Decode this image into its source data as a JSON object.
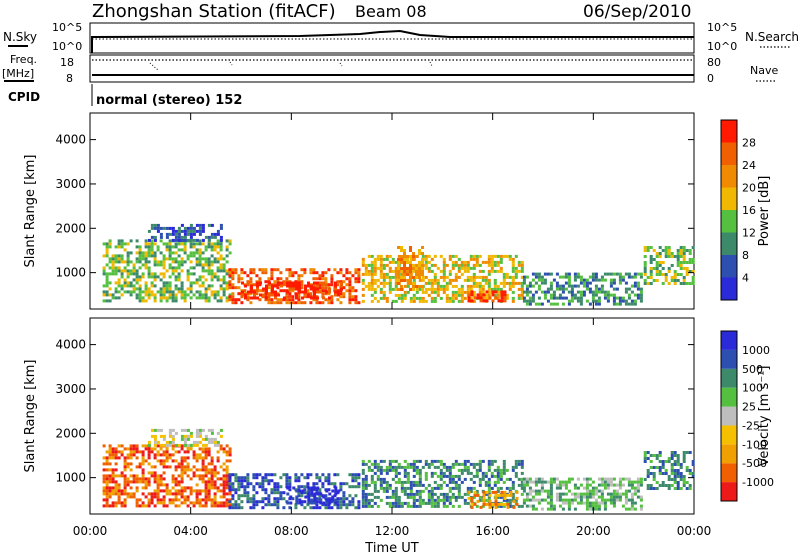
{
  "header": {
    "title": "Zhongshan Station (fitACF)",
    "beam": "Beam 08",
    "date": "06/Sep/2010"
  },
  "info_panels": {
    "nsky_label": "N.Sky",
    "nsky_ticks": [
      "10^5",
      "10^0"
    ],
    "nsearch_label": "N.Search",
    "freq_label": "Freq.",
    "freq_unit": "[MHz]",
    "freq_ticks": [
      "18",
      "8"
    ],
    "nave_label": "Nave",
    "nave_ticks": [
      "80",
      "0"
    ],
    "cpid_label": "CPID",
    "cpid_text": "normal (stereo) 152"
  },
  "colors": {
    "power": [
      "#2a2ad8",
      "#2c4fb0",
      "#3c8a6a",
      "#55c040",
      "#f0b800",
      "#f08a00",
      "#f06000",
      "#ff1a00"
    ],
    "velocity": [
      "#ee1a1a",
      "#f06000",
      "#f0a000",
      "#f5c000",
      "#bebebe",
      "#55c040",
      "#3c8a6a",
      "#2c4fb0",
      "#2a2ad8"
    ]
  },
  "chart_data": [
    {
      "type": "heatmap",
      "ylabel": "Slant Range [km]",
      "xlabel": "",
      "x_ticks": [
        "00:00",
        "04:00",
        "08:00",
        "12:00",
        "16:00",
        "20:00",
        "00:00"
      ],
      "xlim_hours": [
        0,
        24
      ],
      "ylim_km": [
        180,
        4600
      ],
      "y_ticks": [
        1000,
        2000,
        3000,
        4000
      ],
      "colorbar": {
        "label": "Power [dB]",
        "ticks": [
          "4",
          "8",
          "12",
          "16",
          "20",
          "24",
          "28"
        ]
      },
      "regions": [
        {
          "t0": 0.5,
          "t1": 5.6,
          "r0": 300,
          "r1": 1750,
          "level": 3
        },
        {
          "t0": 2.3,
          "t1": 5.3,
          "r0": 1700,
          "r1": 2100,
          "level": 1
        },
        {
          "t0": 5.5,
          "t1": 10.8,
          "r0": 300,
          "r1": 1100,
          "level": 6
        },
        {
          "t0": 6.0,
          "t1": 10.0,
          "r0": 400,
          "r1": 800,
          "level": 7
        },
        {
          "t0": 10.8,
          "t1": 17.2,
          "r0": 300,
          "r1": 1400,
          "level": 4
        },
        {
          "t0": 12.2,
          "t1": 13.3,
          "r0": 600,
          "r1": 1600,
          "level": 5
        },
        {
          "t0": 15.0,
          "t1": 16.6,
          "r0": 300,
          "r1": 600,
          "level": 7
        },
        {
          "t0": 17.2,
          "t1": 22.0,
          "r0": 250,
          "r1": 1000,
          "level": 2
        },
        {
          "t0": 22.0,
          "t1": 24.0,
          "r0": 700,
          "r1": 1600,
          "level": 3
        }
      ]
    },
    {
      "type": "heatmap",
      "ylabel": "Slant Range [km]",
      "xlabel": "Time UT",
      "x_ticks": [
        "00:00",
        "04:00",
        "08:00",
        "12:00",
        "16:00",
        "20:00",
        "00:00"
      ],
      "xlim_hours": [
        0,
        24
      ],
      "ylim_km": [
        180,
        4600
      ],
      "y_ticks": [
        1000,
        2000,
        3000,
        4000
      ],
      "colorbar": {
        "label": "Velocity [m s⁻¹]",
        "ticks": [
          "-1000",
          "-500",
          "-100",
          "-25",
          "25",
          "100",
          "500",
          "1000"
        ]
      },
      "regions": [
        {
          "t0": 0.5,
          "t1": 5.6,
          "r0": 300,
          "r1": 1750,
          "level": 1
        },
        {
          "t0": 2.3,
          "t1": 5.3,
          "r0": 1700,
          "r1": 2100,
          "level": 4
        },
        {
          "t0": 5.5,
          "t1": 10.8,
          "r0": 300,
          "r1": 1100,
          "level": 7
        },
        {
          "t0": 7.8,
          "t1": 10.0,
          "r0": 400,
          "r1": 800,
          "level": 8
        },
        {
          "t0": 10.8,
          "t1": 17.2,
          "r0": 300,
          "r1": 1400,
          "level": 6
        },
        {
          "t0": 15.0,
          "t1": 17.0,
          "r0": 300,
          "r1": 700,
          "level": 2
        },
        {
          "t0": 17.2,
          "t1": 22.0,
          "r0": 250,
          "r1": 1000,
          "level": 5
        },
        {
          "t0": 22.0,
          "t1": 24.0,
          "r0": 700,
          "r1": 1600,
          "level": 6
        }
      ]
    }
  ]
}
